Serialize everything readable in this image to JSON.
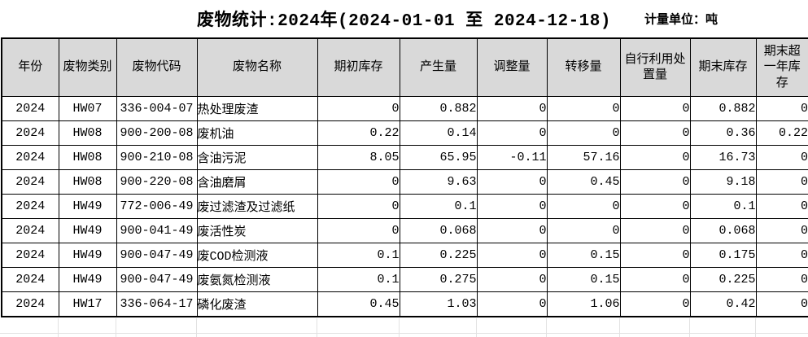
{
  "title": "废物统计:2024年(2024-01-01 至 2024-12-18)",
  "unit_label": "计量单位：吨",
  "table": {
    "headers": [
      "年份",
      "废物类别",
      "废物代码",
      "废物名称",
      "期初库存",
      "产生量",
      "调整量",
      "转移量",
      "自行利用处\n置量",
      "期末库存",
      "期末超\n一年库\n存"
    ],
    "rows": [
      [
        "2024",
        "HW07",
        "336-004-07",
        "热处理废渣",
        "0",
        "0.882",
        "0",
        "0",
        "0",
        "0.882",
        "0"
      ],
      [
        "2024",
        "HW08",
        "900-200-08",
        "废机油",
        "0.22",
        "0.14",
        "0",
        "0",
        "0",
        "0.36",
        "0.22"
      ],
      [
        "2024",
        "HW08",
        "900-210-08",
        "含油污泥",
        "8.05",
        "65.95",
        "-0.11",
        "57.16",
        "0",
        "16.73",
        "0"
      ],
      [
        "2024",
        "HW08",
        "900-220-08",
        "含油磨屑",
        "0",
        "9.63",
        "0",
        "0.45",
        "0",
        "9.18",
        "0"
      ],
      [
        "2024",
        "HW49",
        "772-006-49",
        "废过滤渣及过滤纸",
        "0",
        "0.1",
        "0",
        "0",
        "0",
        "0.1",
        "0"
      ],
      [
        "2024",
        "HW49",
        "900-041-49",
        "废活性炭",
        "0",
        "0.068",
        "0",
        "0",
        "0",
        "0.068",
        "0"
      ],
      [
        "2024",
        "HW49",
        "900-047-49",
        "废COD检测液",
        "0.1",
        "0.225",
        "0",
        "0.15",
        "0",
        "0.175",
        "0"
      ],
      [
        "2024",
        "HW49",
        "900-047-49",
        "废氨氮检测液",
        "0.1",
        "0.275",
        "0",
        "0.15",
        "0",
        "0.225",
        "0"
      ],
      [
        "2024",
        "HW17",
        "336-064-17",
        "磷化废渣",
        "0.45",
        "1.03",
        "0",
        "1.06",
        "0",
        "0.42",
        "0"
      ]
    ]
  },
  "colors": {
    "header_bg": "#d9d9d9",
    "grid_line": "#000000",
    "faint_grid": "#e2e2e2"
  }
}
